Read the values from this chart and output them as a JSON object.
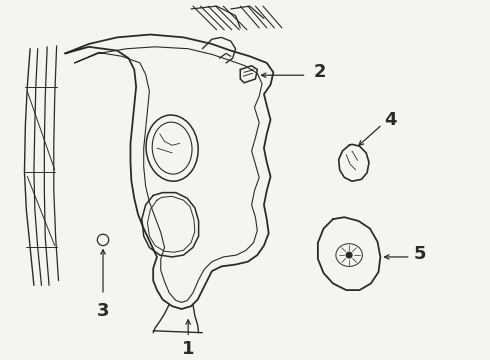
{
  "bg_color": "#f5f5f0",
  "line_color": "#2a2a2a",
  "lw_main": 1.0,
  "fig_width": 4.9,
  "fig_height": 3.6,
  "dpi": 100
}
